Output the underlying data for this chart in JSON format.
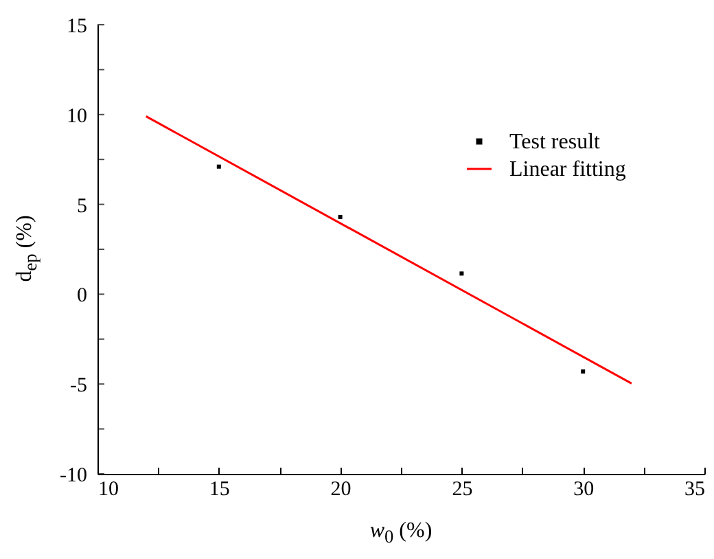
{
  "chart_data": {
    "type": "scatter",
    "xlabel": "w$_{0}$ (%)",
    "ylabel": "d$_{ep}$ (%)",
    "xlim": [
      10,
      35
    ],
    "ylim": [
      -10,
      15
    ],
    "xticks": [
      10,
      {
        "value": 12.5,
        "label": null
      },
      15,
      {
        "value": 17.5,
        "label": null
      },
      20,
      {
        "value": 22.5,
        "label": null
      },
      25,
      {
        "value": 27.5,
        "label": null
      },
      30,
      {
        "value": 32.5,
        "label": null
      },
      35
    ],
    "yticks": [
      -10,
      {
        "value": -7.5,
        "label": null
      },
      -5,
      {
        "value": -2.5,
        "label": null
      },
      0,
      {
        "value": 2.5,
        "label": null
      },
      5,
      {
        "value": 7.5,
        "label": null
      },
      10,
      {
        "value": 12.5,
        "label": null
      },
      15
    ],
    "legend": "top right",
    "series": [
      {
        "name": "Test result",
        "marker": "square",
        "color": "#000000",
        "x": [
          15,
          20,
          25,
          30
        ],
        "values": [
          7.1,
          4.3,
          1.15,
          -4.3
        ]
      },
      {
        "name": "Linear fitting",
        "type": "line",
        "color": "#ff0000",
        "x": [
          12,
          32
        ],
        "values": [
          9.9,
          -4.97
        ]
      }
    ]
  }
}
